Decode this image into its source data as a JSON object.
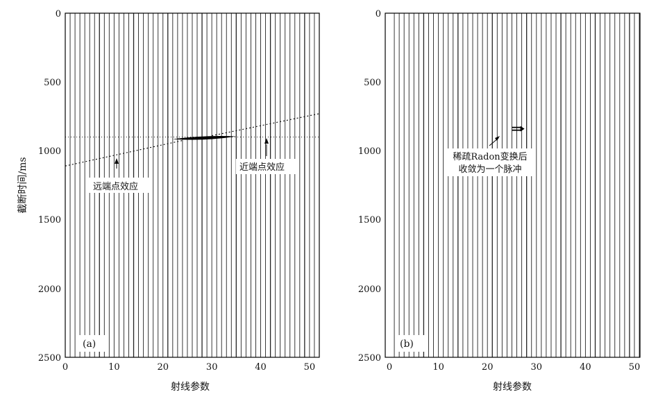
{
  "chart_data": [
    {
      "type": "seismic-gather",
      "panel_tag": "(a)",
      "xlabel": "射线参数",
      "ylabel": "截断时间/ms",
      "xlim": [
        0,
        52
      ],
      "ylim": [
        2500,
        0
      ],
      "x_ticks": [
        "0",
        "10",
        "20",
        "30",
        "40",
        "50"
      ],
      "y_ticks": [
        "0",
        "500",
        "1000",
        "1500",
        "2000",
        "2500"
      ],
      "trace_count": 51,
      "events": [
        {
          "name": "main",
          "x": [
            22,
            35
          ],
          "y": [
            915,
            895
          ]
        },
        {
          "name": "near",
          "x": [
            30,
            52
          ],
          "y": [
            890,
            730
          ]
        },
        {
          "name": "far",
          "x": [
            0,
            24
          ],
          "y": [
            1110,
            925
          ]
        }
      ],
      "annotations": [
        {
          "text": "远端点效应",
          "x": 10,
          "y": 1080
        },
        {
          "text": "近端点效应",
          "x": 41,
          "y": 940
        }
      ]
    },
    {
      "type": "seismic-gather",
      "panel_tag": "(b)",
      "xlabel": "射线参数",
      "ylabel": "",
      "xlim": [
        0,
        52
      ],
      "ylim": [
        2500,
        0
      ],
      "x_ticks": [
        "0",
        "10",
        "20",
        "30",
        "40",
        "50"
      ],
      "y_ticks": [
        "0",
        "500",
        "1000",
        "1500",
        "2000",
        "2500"
      ],
      "trace_count": 51,
      "events": [
        {
          "name": "pulse",
          "x": [
            25,
            27
          ],
          "y": [
            840,
            840
          ]
        }
      ],
      "annotations": [
        {
          "text": "稀疏Radon变换后",
          "x": 22,
          "y": 930
        },
        {
          "text": "收敛为一个脉冲",
          "x": 22,
          "y": 1080
        }
      ]
    }
  ]
}
